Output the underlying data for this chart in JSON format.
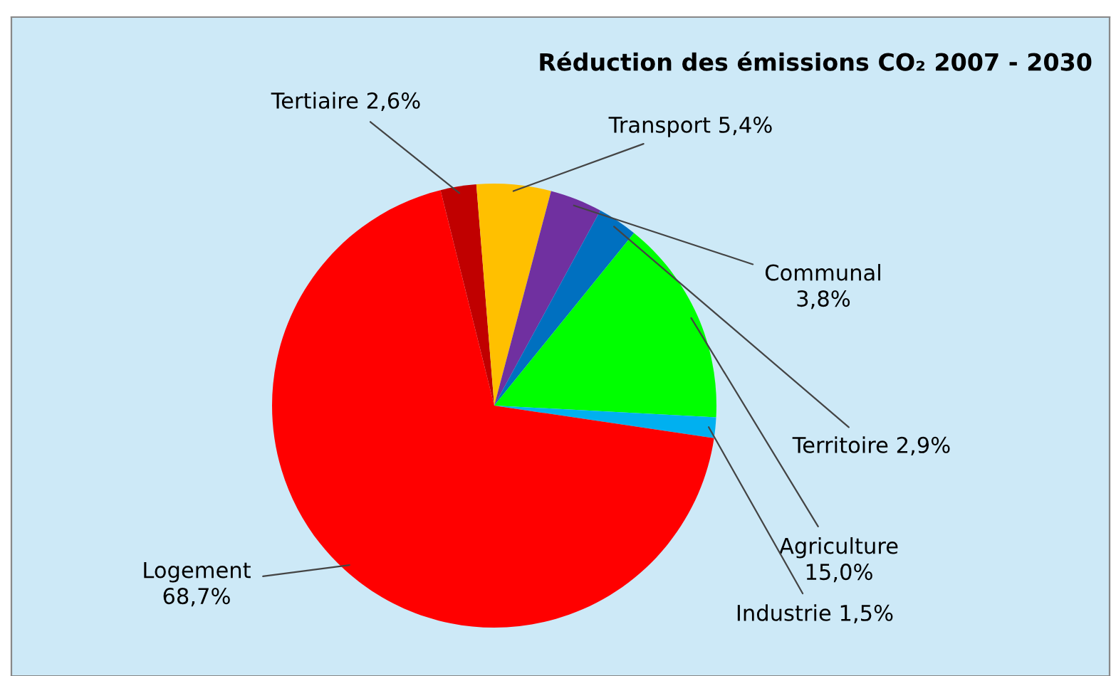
{
  "chart_data": {
    "type": "pie",
    "title": "Réduction des émissions CO₂ 2007 - 2030",
    "categories": [
      "Tertiaire",
      "Transport",
      "Communal",
      "Territoire",
      "Agriculture",
      "Industrie",
      "Logement"
    ],
    "values": [
      2.6,
      5.4,
      3.8,
      2.9,
      15.0,
      1.5,
      68.7
    ],
    "value_labels": [
      "2,6%",
      "5,4%",
      "3,8%",
      "2,9%",
      "15,0%",
      "1,5%",
      "68,7%"
    ],
    "colors": [
      "#c00000",
      "#ffc000",
      "#7030a0",
      "#0070c0",
      "#00ff00",
      "#00b0f0",
      "#ff0000"
    ]
  }
}
